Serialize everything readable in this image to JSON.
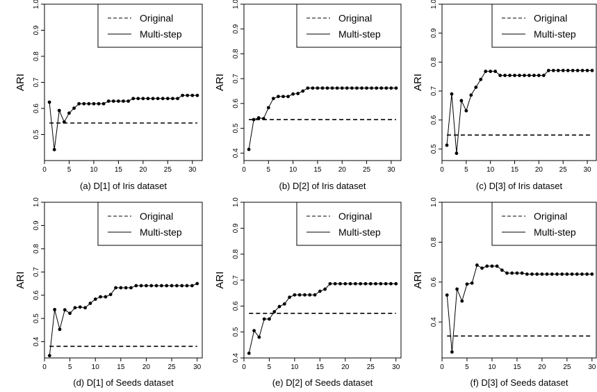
{
  "colors": {
    "line": "#000000",
    "background": "#ffffff"
  },
  "chart_data": [
    {
      "type": "line",
      "caption": "(a) D[1] of Iris dataset",
      "ylabel": "ARI",
      "xlim": [
        0,
        32
      ],
      "ylim": [
        0.4,
        1.0
      ],
      "xticks": [
        0,
        5,
        10,
        15,
        20,
        25,
        30
      ],
      "yticks": [
        0.5,
        0.6,
        0.7,
        0.8,
        0.9,
        1.0
      ],
      "ytick_labels": [
        "0.5",
        "0.6",
        "0.7",
        "0.8",
        "0.9",
        "1.0"
      ],
      "legend": {
        "position": "top-right",
        "entries": [
          "Original",
          "Multi-step"
        ]
      },
      "series": [
        {
          "name": "Original",
          "style": "dashed",
          "x": [
            1,
            31
          ],
          "values": [
            0.544,
            0.544
          ]
        },
        {
          "name": "Multi-step",
          "style": "solid-points",
          "x": [
            1,
            2,
            3,
            4,
            5,
            6,
            7,
            8,
            9,
            10,
            11,
            12,
            13,
            14,
            15,
            16,
            17,
            18,
            19,
            20,
            21,
            22,
            23,
            24,
            25,
            26,
            27,
            28,
            29,
            30,
            31
          ],
          "values": [
            0.624,
            0.442,
            0.592,
            0.548,
            0.582,
            0.601,
            0.618,
            0.618,
            0.618,
            0.618,
            0.618,
            0.618,
            0.628,
            0.628,
            0.628,
            0.628,
            0.628,
            0.638,
            0.638,
            0.638,
            0.638,
            0.638,
            0.638,
            0.638,
            0.638,
            0.638,
            0.638,
            0.65,
            0.65,
            0.65,
            0.65
          ]
        }
      ]
    },
    {
      "type": "line",
      "caption": "(b) D[2] of Iris dataset",
      "ylabel": "ARI",
      "xlim": [
        0,
        32
      ],
      "ylim": [
        0.37,
        1.0
      ],
      "xticks": [
        0,
        5,
        10,
        15,
        20,
        25,
        30
      ],
      "yticks": [
        0.4,
        0.5,
        0.6,
        0.7,
        0.8,
        0.9,
        1.0
      ],
      "ytick_labels": [
        "0.4",
        "0.5",
        "0.6",
        "0.7",
        "0.8",
        "0.9",
        "1.0"
      ],
      "legend": {
        "position": "top-right",
        "entries": [
          "Original",
          "Multi-step"
        ]
      },
      "series": [
        {
          "name": "Original",
          "style": "dashed",
          "x": [
            1,
            31
          ],
          "values": [
            0.535,
            0.535
          ]
        },
        {
          "name": "Multi-step",
          "style": "solid-points",
          "x": [
            1,
            2,
            3,
            4,
            5,
            6,
            7,
            8,
            9,
            10,
            11,
            12,
            13,
            14,
            15,
            16,
            17,
            18,
            19,
            20,
            21,
            22,
            23,
            24,
            25,
            26,
            27,
            28,
            29,
            30,
            31
          ],
          "values": [
            0.415,
            0.535,
            0.542,
            0.539,
            0.583,
            0.62,
            0.628,
            0.628,
            0.628,
            0.638,
            0.64,
            0.65,
            0.662,
            0.662,
            0.662,
            0.662,
            0.662,
            0.662,
            0.662,
            0.662,
            0.662,
            0.662,
            0.662,
            0.662,
            0.662,
            0.662,
            0.662,
            0.662,
            0.662,
            0.662,
            0.662
          ]
        }
      ]
    },
    {
      "type": "line",
      "caption": "(c) D[3] of Iris dataset",
      "ylabel": "ARI",
      "xlim": [
        0,
        32
      ],
      "ylim": [
        0.46,
        1.0
      ],
      "xticks": [
        0,
        5,
        10,
        15,
        20,
        25,
        30
      ],
      "yticks": [
        0.5,
        0.6,
        0.7,
        0.8,
        0.9,
        1.0
      ],
      "ytick_labels": [
        "0.5",
        "0.6",
        "0.7",
        "0.8",
        "0.9",
        "1.0"
      ],
      "legend": {
        "position": "top-right",
        "entries": [
          "Original",
          "Multi-step"
        ]
      },
      "series": [
        {
          "name": "Original",
          "style": "dashed",
          "x": [
            1,
            31
          ],
          "values": [
            0.548,
            0.548
          ]
        },
        {
          "name": "Multi-step",
          "style": "solid-points",
          "x": [
            1,
            2,
            3,
            4,
            5,
            6,
            7,
            8,
            9,
            10,
            11,
            12,
            13,
            14,
            15,
            16,
            17,
            18,
            19,
            20,
            21,
            22,
            23,
            24,
            25,
            26,
            27,
            28,
            29,
            30,
            31
          ],
          "values": [
            0.513,
            0.69,
            0.485,
            0.667,
            0.632,
            0.686,
            0.713,
            0.74,
            0.768,
            0.768,
            0.768,
            0.754,
            0.754,
            0.754,
            0.754,
            0.754,
            0.754,
            0.754,
            0.754,
            0.754,
            0.754,
            0.771,
            0.771,
            0.771,
            0.771,
            0.771,
            0.771,
            0.771,
            0.771,
            0.771,
            0.771
          ]
        }
      ]
    },
    {
      "type": "line",
      "caption": "(d) D[1] of Seeds dataset",
      "ylabel": "ARI",
      "xlim": [
        0,
        31
      ],
      "ylim": [
        0.33,
        1.0
      ],
      "xticks": [
        0,
        5,
        10,
        15,
        20,
        25,
        30
      ],
      "yticks": [
        0.4,
        0.5,
        0.6,
        0.7,
        0.8,
        0.9,
        1.0
      ],
      "ytick_labels": [
        "0.4",
        "0.5",
        "0.6",
        "0.7",
        "0.8",
        "0.9",
        "1.0"
      ],
      "legend": {
        "position": "top-right",
        "entries": [
          "Original",
          "Multi-step"
        ]
      },
      "series": [
        {
          "name": "Original",
          "style": "dashed",
          "x": [
            1,
            30
          ],
          "values": [
            0.38,
            0.38
          ]
        },
        {
          "name": "Multi-step",
          "style": "solid-points",
          "x": [
            1,
            2,
            3,
            4,
            5,
            6,
            7,
            8,
            9,
            10,
            11,
            12,
            13,
            14,
            15,
            16,
            17,
            18,
            19,
            20,
            21,
            22,
            23,
            24,
            25,
            26,
            27,
            28,
            29,
            30
          ],
          "values": [
            0.34,
            0.538,
            0.453,
            0.537,
            0.522,
            0.546,
            0.549,
            0.546,
            0.565,
            0.583,
            0.593,
            0.593,
            0.603,
            0.632,
            0.632,
            0.632,
            0.632,
            0.641,
            0.641,
            0.641,
            0.641,
            0.641,
            0.641,
            0.641,
            0.641,
            0.641,
            0.641,
            0.641,
            0.641,
            0.65
          ]
        }
      ]
    },
    {
      "type": "line",
      "caption": "(e) D[2] of Seeds dataset",
      "ylabel": "ARI",
      "xlim": [
        0,
        31
      ],
      "ylim": [
        0.4,
        1.0
      ],
      "xticks": [
        0,
        5,
        10,
        15,
        20,
        25,
        30
      ],
      "yticks": [
        0.4,
        0.5,
        0.6,
        0.7,
        0.8,
        0.9,
        1.0
      ],
      "ytick_labels": [
        "0.4",
        "0.5",
        "0.6",
        "0.7",
        "0.8",
        "0.9",
        "1.0"
      ],
      "legend": {
        "position": "top-right",
        "entries": [
          "Original",
          "Multi-step"
        ]
      },
      "series": [
        {
          "name": "Original",
          "style": "dashed",
          "x": [
            1,
            30
          ],
          "values": [
            0.572,
            0.572
          ]
        },
        {
          "name": "Multi-step",
          "style": "solid-points",
          "x": [
            1,
            2,
            3,
            4,
            5,
            6,
            7,
            8,
            9,
            10,
            11,
            12,
            13,
            14,
            15,
            16,
            17,
            18,
            19,
            20,
            21,
            22,
            23,
            24,
            25,
            26,
            27,
            28,
            29,
            30
          ],
          "values": [
            0.418,
            0.505,
            0.48,
            0.55,
            0.55,
            0.578,
            0.598,
            0.608,
            0.634,
            0.643,
            0.643,
            0.643,
            0.643,
            0.643,
            0.657,
            0.665,
            0.686,
            0.686,
            0.686,
            0.686,
            0.686,
            0.686,
            0.686,
            0.686,
            0.686,
            0.686,
            0.686,
            0.686,
            0.686,
            0.686
          ]
        }
      ]
    },
    {
      "type": "line",
      "caption": "(f) D[3] of Seeds dataset",
      "ylabel": "ARI",
      "xlim": [
        0,
        31
      ],
      "ylim": [
        0.22,
        1.0
      ],
      "xticks": [
        0,
        5,
        10,
        15,
        20,
        25,
        30
      ],
      "yticks": [
        0.4,
        0.6,
        0.8,
        1.0
      ],
      "ytick_labels": [
        "0.4",
        "0.6",
        "0.8",
        "1.0"
      ],
      "legend": {
        "position": "top-right",
        "entries": [
          "Original",
          "Multi-step"
        ]
      },
      "series": [
        {
          "name": "Original",
          "style": "dashed",
          "x": [
            1,
            30
          ],
          "values": [
            0.33,
            0.33
          ]
        },
        {
          "name": "Multi-step",
          "style": "solid-points",
          "x": [
            1,
            2,
            3,
            4,
            5,
            6,
            7,
            8,
            9,
            10,
            11,
            12,
            13,
            14,
            15,
            16,
            17,
            18,
            19,
            20,
            21,
            22,
            23,
            24,
            25,
            26,
            27,
            28,
            29,
            30
          ],
          "values": [
            0.535,
            0.25,
            0.565,
            0.505,
            0.59,
            0.595,
            0.685,
            0.67,
            0.68,
            0.68,
            0.68,
            0.66,
            0.645,
            0.645,
            0.645,
            0.645,
            0.64,
            0.64,
            0.64,
            0.64,
            0.64,
            0.64,
            0.64,
            0.64,
            0.64,
            0.64,
            0.64,
            0.64,
            0.64,
            0.64
          ]
        }
      ]
    }
  ]
}
